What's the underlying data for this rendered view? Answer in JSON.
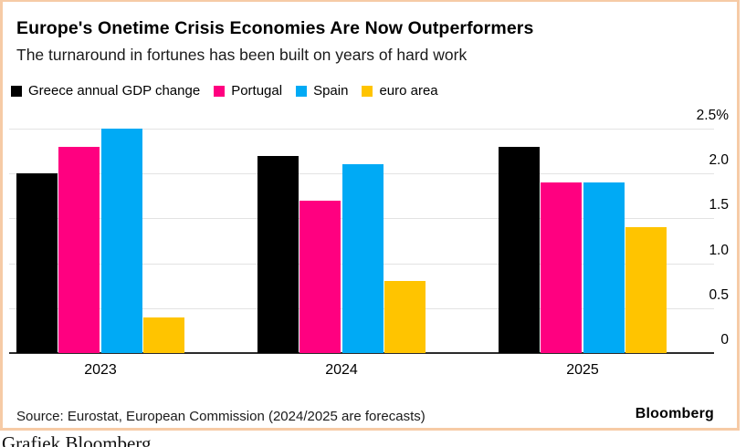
{
  "header": {
    "title": "Europe's Onetime Crisis Economies Are Now Outperformers",
    "subtitle": "The turnaround in fortunes has been built on years of hard work"
  },
  "chart_data": {
    "type": "bar",
    "title": "Europe's Onetime Crisis Economies Are Now Outperformers",
    "subtitle": "The turnaround in fortunes has been built on years of hard work",
    "categories": [
      "2023",
      "2024",
      "2025"
    ],
    "series": [
      {
        "name": "Greece annual GDP change",
        "color": "#000000",
        "values": [
          2.0,
          2.2,
          2.3
        ]
      },
      {
        "name": "Portugal",
        "color": "#ff0080",
        "values": [
          2.3,
          1.7,
          1.9
        ]
      },
      {
        "name": "Spain",
        "color": "#00aaf5",
        "values": [
          2.5,
          2.1,
          1.9
        ]
      },
      {
        "name": "euro area",
        "color": "#ffc400",
        "values": [
          0.4,
          0.8,
          1.4
        ]
      }
    ],
    "unit": "%",
    "xlabel": "",
    "ylabel": "",
    "ylim": [
      0,
      2.5
    ],
    "yticks": [
      0,
      0.5,
      1.0,
      1.5,
      2.0,
      2.5
    ],
    "ytick_labels": [
      "0",
      "0.5",
      "1.0",
      "1.5",
      "2.0",
      "2.5%"
    ],
    "grid": true,
    "legend_position": "top-left"
  },
  "footer": {
    "source": "Source: Eurostat, European Commission (2024/2025 are forecasts)",
    "brand": "Bloomberg"
  },
  "caption": "Grafiek Bloomberg",
  "colors": {
    "frame_border": "#f6cba6",
    "gridline": "#e3e3e3",
    "axis_line": "#2b2b2b",
    "text": "#000000",
    "background": "#ffffff"
  }
}
